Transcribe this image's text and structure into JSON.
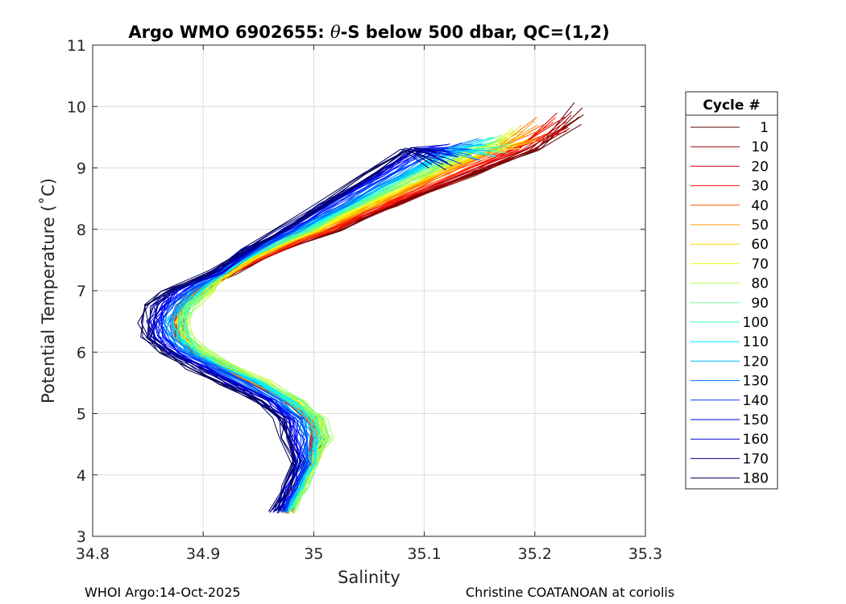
{
  "chart_data": {
    "type": "line",
    "title": {
      "prefix": "Argo WMO 6902655: ",
      "theta": "θ",
      "suffix": "-S below 500 dbar,  QC=(1,2)"
    },
    "xlabel": "Salinity",
    "ylabel": "Potential Temperature (˚C)",
    "xlim": [
      34.8,
      35.3
    ],
    "ylim": [
      3,
      11
    ],
    "xticks": [
      34.8,
      34.9,
      35.0,
      35.1,
      35.2,
      35.3
    ],
    "xtick_labels": [
      "34.8",
      "34.9",
      "35",
      "35.1",
      "35.2",
      "35.3"
    ],
    "yticks": [
      3,
      4,
      5,
      6,
      7,
      8,
      9,
      10,
      11
    ],
    "ytick_labels": [
      "3",
      "4",
      "5",
      "6",
      "7",
      "8",
      "9",
      "10",
      "11"
    ],
    "grid": true,
    "legend": {
      "title": "Cycle #",
      "placement": "right-outside",
      "entries": [
        {
          "label": "1",
          "color": "#5a0000"
        },
        {
          "label": "10",
          "color": "#9a0000"
        },
        {
          "label": "20",
          "color": "#d40000"
        },
        {
          "label": "30",
          "color": "#ff1a00"
        },
        {
          "label": "40",
          "color": "#ff5a00"
        },
        {
          "label": "50",
          "color": "#ff9a00"
        },
        {
          "label": "60",
          "color": "#ffd400"
        },
        {
          "label": "70",
          "color": "#f0ff10"
        },
        {
          "label": "80",
          "color": "#b0ff4a"
        },
        {
          "label": "90",
          "color": "#70ff8a"
        },
        {
          "label": "100",
          "color": "#30ffc4"
        },
        {
          "label": "110",
          "color": "#00f0ff"
        },
        {
          "label": "120",
          "color": "#00b4ff"
        },
        {
          "label": "130",
          "color": "#0074ff"
        },
        {
          "label": "140",
          "color": "#0038ff"
        },
        {
          "label": "150",
          "color": "#0000ff"
        },
        {
          "label": "160",
          "color": "#0000c8"
        },
        {
          "label": "170",
          "color": "#000090"
        },
        {
          "label": "180",
          "color": "#00005a"
        }
      ]
    },
    "profile_envelope": {
      "description_points": "representative theta-S curve [salinity, theta] shared by all cycles",
      "base_curve": [
        [
          34.975,
          3.4
        ],
        [
          34.985,
          3.8
        ],
        [
          34.995,
          4.2
        ],
        [
          35.0,
          4.6
        ],
        [
          34.995,
          4.9
        ],
        [
          34.975,
          5.2
        ],
        [
          34.945,
          5.5
        ],
        [
          34.915,
          5.75
        ],
        [
          34.89,
          6.0
        ],
        [
          34.875,
          6.25
        ],
        [
          34.872,
          6.5
        ],
        [
          34.878,
          6.75
        ],
        [
          34.893,
          7.0
        ],
        [
          34.915,
          7.3
        ],
        [
          34.945,
          7.65
        ],
        [
          34.985,
          8.0
        ],
        [
          35.025,
          8.4
        ],
        [
          35.075,
          8.9
        ],
        [
          35.115,
          9.3
        ],
        [
          35.145,
          9.55
        ]
      ],
      "cycles": [
        1,
        10,
        20,
        30,
        40,
        50,
        60,
        70,
        80,
        90,
        100,
        110,
        120,
        130,
        140,
        150,
        160,
        170,
        180
      ],
      "upper_salinity_offset_by_cycle": [
        0.095,
        0.09,
        0.08,
        0.07,
        0.06,
        0.055,
        0.045,
        0.04,
        0.035,
        0.03,
        0.02,
        0.015,
        0.01,
        0.0,
        -0.01,
        -0.02,
        -0.025,
        -0.03,
        -0.035
      ],
      "middle_salinity_offset_by_cycle": [
        0.005,
        0.004,
        0.003,
        0.002,
        0.004,
        0.006,
        0.008,
        0.01,
        0.012,
        0.01,
        0.006,
        0.002,
        -0.002,
        -0.006,
        -0.01,
        -0.014,
        -0.018,
        -0.022,
        -0.026
      ],
      "top_theta_by_cycle": [
        10.05,
        9.95,
        9.9,
        9.85,
        9.8,
        9.75,
        9.7,
        9.65,
        9.6,
        9.55,
        9.5,
        9.5,
        9.45,
        9.45,
        9.4,
        9.4,
        9.35,
        9.3,
        9.3
      ]
    }
  },
  "footer": {
    "left": "WHOI Argo:14-Oct-2025",
    "right": "Christine COATANOAN at coriolis"
  }
}
